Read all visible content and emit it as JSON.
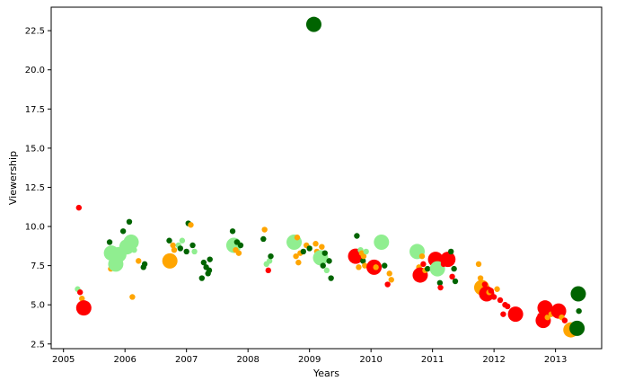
{
  "chart_data": {
    "type": "scatter",
    "xlabel": "Years",
    "ylabel": "Viewership",
    "xlim": [
      2004.8,
      2013.75
    ],
    "ylim": [
      2.2,
      24.0
    ],
    "xticks": [
      2005,
      2006,
      2007,
      2008,
      2009,
      2010,
      2011,
      2012,
      2013
    ],
    "xtick_labels": [
      "2005",
      "2006",
      "2007",
      "2008",
      "2009",
      "2010",
      "2011",
      "2012",
      "2013"
    ],
    "yticks": [
      2.5,
      5.0,
      7.5,
      10.0,
      12.5,
      15.0,
      17.5,
      20.0,
      22.5
    ],
    "ytick_labels": [
      "2.5",
      "5.0",
      "7.5",
      "10.0",
      "12.5",
      "15.0",
      "17.5",
      "20.0",
      "22.5"
    ],
    "grid": false,
    "colors": {
      "red": "#ff0000",
      "orange": "#ffa500",
      "darkgreen": "#006400",
      "lightgreen": "#90ee90"
    },
    "points": [
      {
        "x": 2005.25,
        "y": 11.2,
        "color": "red",
        "size": "small"
      },
      {
        "x": 2005.23,
        "y": 6.0,
        "color": "lightgreen",
        "size": "small"
      },
      {
        "x": 2005.27,
        "y": 5.8,
        "color": "red",
        "size": "small"
      },
      {
        "x": 2005.3,
        "y": 5.4,
        "color": "orange",
        "size": "small"
      },
      {
        "x": 2005.33,
        "y": 4.8,
        "color": "red",
        "size": "large"
      },
      {
        "x": 2005.75,
        "y": 9.0,
        "color": "darkgreen",
        "size": "small"
      },
      {
        "x": 2005.77,
        "y": 7.3,
        "color": "orange",
        "size": "small"
      },
      {
        "x": 2005.78,
        "y": 8.3,
        "color": "lightgreen",
        "size": "large"
      },
      {
        "x": 2005.85,
        "y": 7.6,
        "color": "lightgreen",
        "size": "large"
      },
      {
        "x": 2005.9,
        "y": 8.2,
        "color": "lightgreen",
        "size": "large"
      },
      {
        "x": 2005.97,
        "y": 9.7,
        "color": "darkgreen",
        "size": "small"
      },
      {
        "x": 2006.03,
        "y": 8.7,
        "color": "lightgreen",
        "size": "large"
      },
      {
        "x": 2006.07,
        "y": 10.3,
        "color": "darkgreen",
        "size": "small"
      },
      {
        "x": 2006.1,
        "y": 9.0,
        "color": "lightgreen",
        "size": "large"
      },
      {
        "x": 2006.12,
        "y": 5.5,
        "color": "orange",
        "size": "small"
      },
      {
        "x": 2006.15,
        "y": 8.5,
        "color": "lightgreen",
        "size": "small"
      },
      {
        "x": 2006.22,
        "y": 7.8,
        "color": "orange",
        "size": "small"
      },
      {
        "x": 2006.3,
        "y": 7.4,
        "color": "darkgreen",
        "size": "small"
      },
      {
        "x": 2006.32,
        "y": 7.6,
        "color": "darkgreen",
        "size": "small"
      },
      {
        "x": 2006.72,
        "y": 9.1,
        "color": "darkgreen",
        "size": "small"
      },
      {
        "x": 2006.73,
        "y": 7.8,
        "color": "orange",
        "size": "large"
      },
      {
        "x": 2006.78,
        "y": 8.8,
        "color": "orange",
        "size": "small"
      },
      {
        "x": 2006.8,
        "y": 8.5,
        "color": "orange",
        "size": "small"
      },
      {
        "x": 2006.87,
        "y": 8.8,
        "color": "lightgreen",
        "size": "small"
      },
      {
        "x": 2006.9,
        "y": 8.6,
        "color": "darkgreen",
        "size": "small"
      },
      {
        "x": 2006.93,
        "y": 9.1,
        "color": "lightgreen",
        "size": "small"
      },
      {
        "x": 2007.0,
        "y": 8.4,
        "color": "darkgreen",
        "size": "small"
      },
      {
        "x": 2007.03,
        "y": 10.2,
        "color": "darkgreen",
        "size": "small"
      },
      {
        "x": 2007.07,
        "y": 10.1,
        "color": "orange",
        "size": "small"
      },
      {
        "x": 2007.1,
        "y": 8.8,
        "color": "darkgreen",
        "size": "small"
      },
      {
        "x": 2007.13,
        "y": 8.4,
        "color": "lightgreen",
        "size": "small"
      },
      {
        "x": 2007.25,
        "y": 6.7,
        "color": "darkgreen",
        "size": "small"
      },
      {
        "x": 2007.28,
        "y": 7.7,
        "color": "darkgreen",
        "size": "small"
      },
      {
        "x": 2007.32,
        "y": 7.4,
        "color": "darkgreen",
        "size": "small"
      },
      {
        "x": 2007.35,
        "y": 7.0,
        "color": "darkgreen",
        "size": "small"
      },
      {
        "x": 2007.37,
        "y": 7.2,
        "color": "darkgreen",
        "size": "small"
      },
      {
        "x": 2007.38,
        "y": 7.9,
        "color": "darkgreen",
        "size": "small"
      },
      {
        "x": 2007.75,
        "y": 9.7,
        "color": "darkgreen",
        "size": "small"
      },
      {
        "x": 2007.77,
        "y": 8.8,
        "color": "lightgreen",
        "size": "large"
      },
      {
        "x": 2007.8,
        "y": 8.5,
        "color": "orange",
        "size": "small"
      },
      {
        "x": 2007.82,
        "y": 9.0,
        "color": "darkgreen",
        "size": "small"
      },
      {
        "x": 2007.85,
        "y": 8.3,
        "color": "orange",
        "size": "small"
      },
      {
        "x": 2007.88,
        "y": 8.8,
        "color": "darkgreen",
        "size": "small"
      },
      {
        "x": 2008.25,
        "y": 9.2,
        "color": "darkgreen",
        "size": "small"
      },
      {
        "x": 2008.27,
        "y": 9.8,
        "color": "orange",
        "size": "small"
      },
      {
        "x": 2008.3,
        "y": 7.6,
        "color": "lightgreen",
        "size": "small"
      },
      {
        "x": 2008.33,
        "y": 7.2,
        "color": "red",
        "size": "small"
      },
      {
        "x": 2008.35,
        "y": 7.8,
        "color": "lightgreen",
        "size": "small"
      },
      {
        "x": 2008.37,
        "y": 8.1,
        "color": "darkgreen",
        "size": "small"
      },
      {
        "x": 2008.75,
        "y": 9.0,
        "color": "lightgreen",
        "size": "large"
      },
      {
        "x": 2008.78,
        "y": 8.1,
        "color": "orange",
        "size": "small"
      },
      {
        "x": 2008.8,
        "y": 9.3,
        "color": "orange",
        "size": "small"
      },
      {
        "x": 2008.82,
        "y": 7.7,
        "color": "orange",
        "size": "small"
      },
      {
        "x": 2008.85,
        "y": 8.3,
        "color": "orange",
        "size": "small"
      },
      {
        "x": 2008.9,
        "y": 8.4,
        "color": "darkgreen",
        "size": "small"
      },
      {
        "x": 2008.95,
        "y": 8.8,
        "color": "orange",
        "size": "small"
      },
      {
        "x": 2009.0,
        "y": 8.6,
        "color": "darkgreen",
        "size": "small"
      },
      {
        "x": 2009.07,
        "y": 22.9,
        "color": "darkgreen",
        "size": "large"
      },
      {
        "x": 2009.1,
        "y": 8.9,
        "color": "orange",
        "size": "small"
      },
      {
        "x": 2009.12,
        "y": 8.4,
        "color": "orange",
        "size": "small"
      },
      {
        "x": 2009.15,
        "y": 8.2,
        "color": "lightgreen",
        "size": "small"
      },
      {
        "x": 2009.18,
        "y": 8.0,
        "color": "lightgreen",
        "size": "large"
      },
      {
        "x": 2009.2,
        "y": 8.7,
        "color": "orange",
        "size": "small"
      },
      {
        "x": 2009.22,
        "y": 7.5,
        "color": "darkgreen",
        "size": "small"
      },
      {
        "x": 2009.25,
        "y": 8.3,
        "color": "darkgreen",
        "size": "small"
      },
      {
        "x": 2009.28,
        "y": 7.2,
        "color": "lightgreen",
        "size": "small"
      },
      {
        "x": 2009.32,
        "y": 7.8,
        "color": "darkgreen",
        "size": "small"
      },
      {
        "x": 2009.35,
        "y": 6.7,
        "color": "darkgreen",
        "size": "small"
      },
      {
        "x": 2009.75,
        "y": 8.1,
        "color": "red",
        "size": "large"
      },
      {
        "x": 2009.77,
        "y": 9.4,
        "color": "darkgreen",
        "size": "small"
      },
      {
        "x": 2009.8,
        "y": 7.4,
        "color": "orange",
        "size": "small"
      },
      {
        "x": 2009.83,
        "y": 8.5,
        "color": "lightgreen",
        "size": "small"
      },
      {
        "x": 2009.85,
        "y": 8.3,
        "color": "orange",
        "size": "small"
      },
      {
        "x": 2009.87,
        "y": 7.8,
        "color": "darkgreen",
        "size": "small"
      },
      {
        "x": 2009.88,
        "y": 8.1,
        "color": "orange",
        "size": "small"
      },
      {
        "x": 2009.9,
        "y": 7.5,
        "color": "orange",
        "size": "small"
      },
      {
        "x": 2009.92,
        "y": 8.4,
        "color": "lightgreen",
        "size": "small"
      },
      {
        "x": 2010.05,
        "y": 7.4,
        "color": "red",
        "size": "large"
      },
      {
        "x": 2010.08,
        "y": 7.4,
        "color": "orange",
        "size": "small"
      },
      {
        "x": 2010.17,
        "y": 9.0,
        "color": "lightgreen",
        "size": "large"
      },
      {
        "x": 2010.22,
        "y": 7.5,
        "color": "darkgreen",
        "size": "small"
      },
      {
        "x": 2010.27,
        "y": 6.3,
        "color": "red",
        "size": "small"
      },
      {
        "x": 2010.3,
        "y": 7.0,
        "color": "orange",
        "size": "small"
      },
      {
        "x": 2010.33,
        "y": 6.6,
        "color": "orange",
        "size": "small"
      },
      {
        "x": 2010.75,
        "y": 8.4,
        "color": "lightgreen",
        "size": "large"
      },
      {
        "x": 2010.78,
        "y": 7.4,
        "color": "orange",
        "size": "small"
      },
      {
        "x": 2010.8,
        "y": 6.9,
        "color": "red",
        "size": "large"
      },
      {
        "x": 2010.83,
        "y": 8.1,
        "color": "orange",
        "size": "small"
      },
      {
        "x": 2010.85,
        "y": 7.6,
        "color": "red",
        "size": "small"
      },
      {
        "x": 2010.88,
        "y": 7.2,
        "color": "orange",
        "size": "small"
      },
      {
        "x": 2010.92,
        "y": 7.3,
        "color": "darkgreen",
        "size": "small"
      },
      {
        "x": 2011.05,
        "y": 7.9,
        "color": "red",
        "size": "large"
      },
      {
        "x": 2011.08,
        "y": 7.3,
        "color": "lightgreen",
        "size": "large"
      },
      {
        "x": 2011.12,
        "y": 6.4,
        "color": "darkgreen",
        "size": "small"
      },
      {
        "x": 2011.13,
        "y": 6.1,
        "color": "red",
        "size": "small"
      },
      {
        "x": 2011.18,
        "y": 7.6,
        "color": "red",
        "size": "small"
      },
      {
        "x": 2011.25,
        "y": 7.9,
        "color": "red",
        "size": "large"
      },
      {
        "x": 2011.3,
        "y": 8.4,
        "color": "darkgreen",
        "size": "small"
      },
      {
        "x": 2011.32,
        "y": 6.8,
        "color": "red",
        "size": "small"
      },
      {
        "x": 2011.35,
        "y": 7.3,
        "color": "darkgreen",
        "size": "small"
      },
      {
        "x": 2011.37,
        "y": 6.5,
        "color": "darkgreen",
        "size": "small"
      },
      {
        "x": 2011.75,
        "y": 7.6,
        "color": "orange",
        "size": "small"
      },
      {
        "x": 2011.78,
        "y": 6.7,
        "color": "orange",
        "size": "small"
      },
      {
        "x": 2011.8,
        "y": 6.1,
        "color": "orange",
        "size": "large"
      },
      {
        "x": 2011.85,
        "y": 6.3,
        "color": "red",
        "size": "small"
      },
      {
        "x": 2011.88,
        "y": 5.7,
        "color": "red",
        "size": "large"
      },
      {
        "x": 2011.92,
        "y": 5.8,
        "color": "orange",
        "size": "small"
      },
      {
        "x": 2011.95,
        "y": 5.9,
        "color": "red",
        "size": "small"
      },
      {
        "x": 2012.0,
        "y": 5.5,
        "color": "red",
        "size": "small"
      },
      {
        "x": 2012.05,
        "y": 6.0,
        "color": "orange",
        "size": "small"
      },
      {
        "x": 2012.1,
        "y": 5.3,
        "color": "red",
        "size": "small"
      },
      {
        "x": 2012.15,
        "y": 4.4,
        "color": "red",
        "size": "small"
      },
      {
        "x": 2012.18,
        "y": 5.0,
        "color": "red",
        "size": "small"
      },
      {
        "x": 2012.22,
        "y": 4.9,
        "color": "red",
        "size": "small"
      },
      {
        "x": 2012.35,
        "y": 4.4,
        "color": "red",
        "size": "large"
      },
      {
        "x": 2012.75,
        "y": 4.3,
        "color": "red",
        "size": "small"
      },
      {
        "x": 2012.8,
        "y": 4.0,
        "color": "red",
        "size": "large"
      },
      {
        "x": 2012.83,
        "y": 4.8,
        "color": "red",
        "size": "large"
      },
      {
        "x": 2012.87,
        "y": 4.2,
        "color": "orange",
        "size": "small"
      },
      {
        "x": 2012.9,
        "y": 4.5,
        "color": "red",
        "size": "small"
      },
      {
        "x": 2012.93,
        "y": 4.4,
        "color": "orange",
        "size": "small"
      },
      {
        "x": 2013.05,
        "y": 4.6,
        "color": "red",
        "size": "large"
      },
      {
        "x": 2013.1,
        "y": 4.2,
        "color": "orange",
        "size": "small"
      },
      {
        "x": 2013.15,
        "y": 4.0,
        "color": "red",
        "size": "small"
      },
      {
        "x": 2013.25,
        "y": 3.4,
        "color": "orange",
        "size": "large"
      },
      {
        "x": 2013.35,
        "y": 3.5,
        "color": "darkgreen",
        "size": "large"
      },
      {
        "x": 2013.37,
        "y": 5.7,
        "color": "darkgreen",
        "size": "large"
      },
      {
        "x": 2013.38,
        "y": 4.6,
        "color": "darkgreen",
        "size": "small"
      }
    ]
  }
}
